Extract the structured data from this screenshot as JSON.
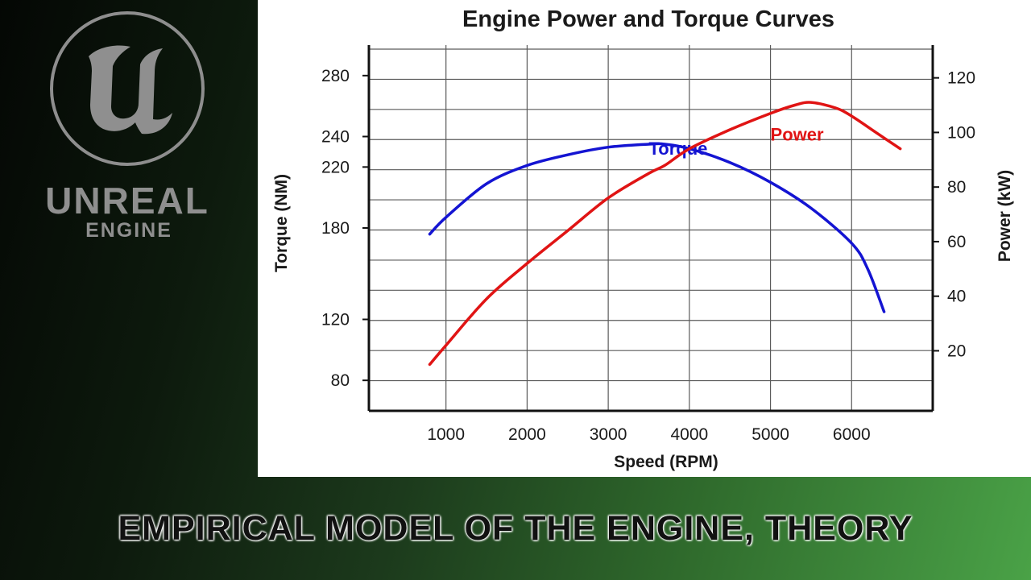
{
  "logo": {
    "word_main": "UNREAL",
    "word_sub": "ENGINE"
  },
  "banner": {
    "text": "EMPIRICAL MODEL OF THE ENGINE, THEORY"
  },
  "chart_data": {
    "type": "line",
    "title": "Engine Power and Torque Curves",
    "xlabel": "Speed (RPM)",
    "ylabel_left": "Torque (NM)",
    "ylabel_right": "Power (kW)",
    "xlim": [
      50,
      7000
    ],
    "ylim_left": [
      60,
      300
    ],
    "ylim_right": [
      -2,
      132
    ],
    "x_ticks": [
      1000,
      2000,
      3000,
      4000,
      5000,
      6000
    ],
    "y_left_ticks": [
      80,
      120,
      180,
      220,
      240,
      280
    ],
    "y_right_ticks": [
      20,
      40,
      60,
      80,
      100,
      120
    ],
    "grid": true,
    "series": [
      {
        "name": "Torque",
        "axis": "left",
        "color": "#1414d2",
        "label_at": [
          3500,
          228
        ],
        "x": [
          800,
          1000,
          1500,
          2000,
          2500,
          3000,
          3500,
          3700,
          4000,
          4500,
          5000,
          5500,
          6000,
          6200,
          6400
        ],
        "y": [
          176,
          187,
          209,
          221,
          228,
          233,
          235,
          235,
          232,
          223,
          210,
          193,
          170,
          153,
          125
        ]
      },
      {
        "name": "Power",
        "axis": "right",
        "color": "#e01414",
        "label_at": [
          5000,
          97
        ],
        "x": [
          800,
          1000,
          1500,
          2000,
          2500,
          3000,
          3500,
          3700,
          4000,
          4500,
          5000,
          5300,
          5500,
          5800,
          6000,
          6300,
          6600
        ],
        "y": [
          15,
          22,
          39,
          52,
          64,
          76,
          85,
          88,
          94,
          101,
          107,
          110,
          111,
          109,
          106,
          100,
          94
        ]
      }
    ]
  }
}
